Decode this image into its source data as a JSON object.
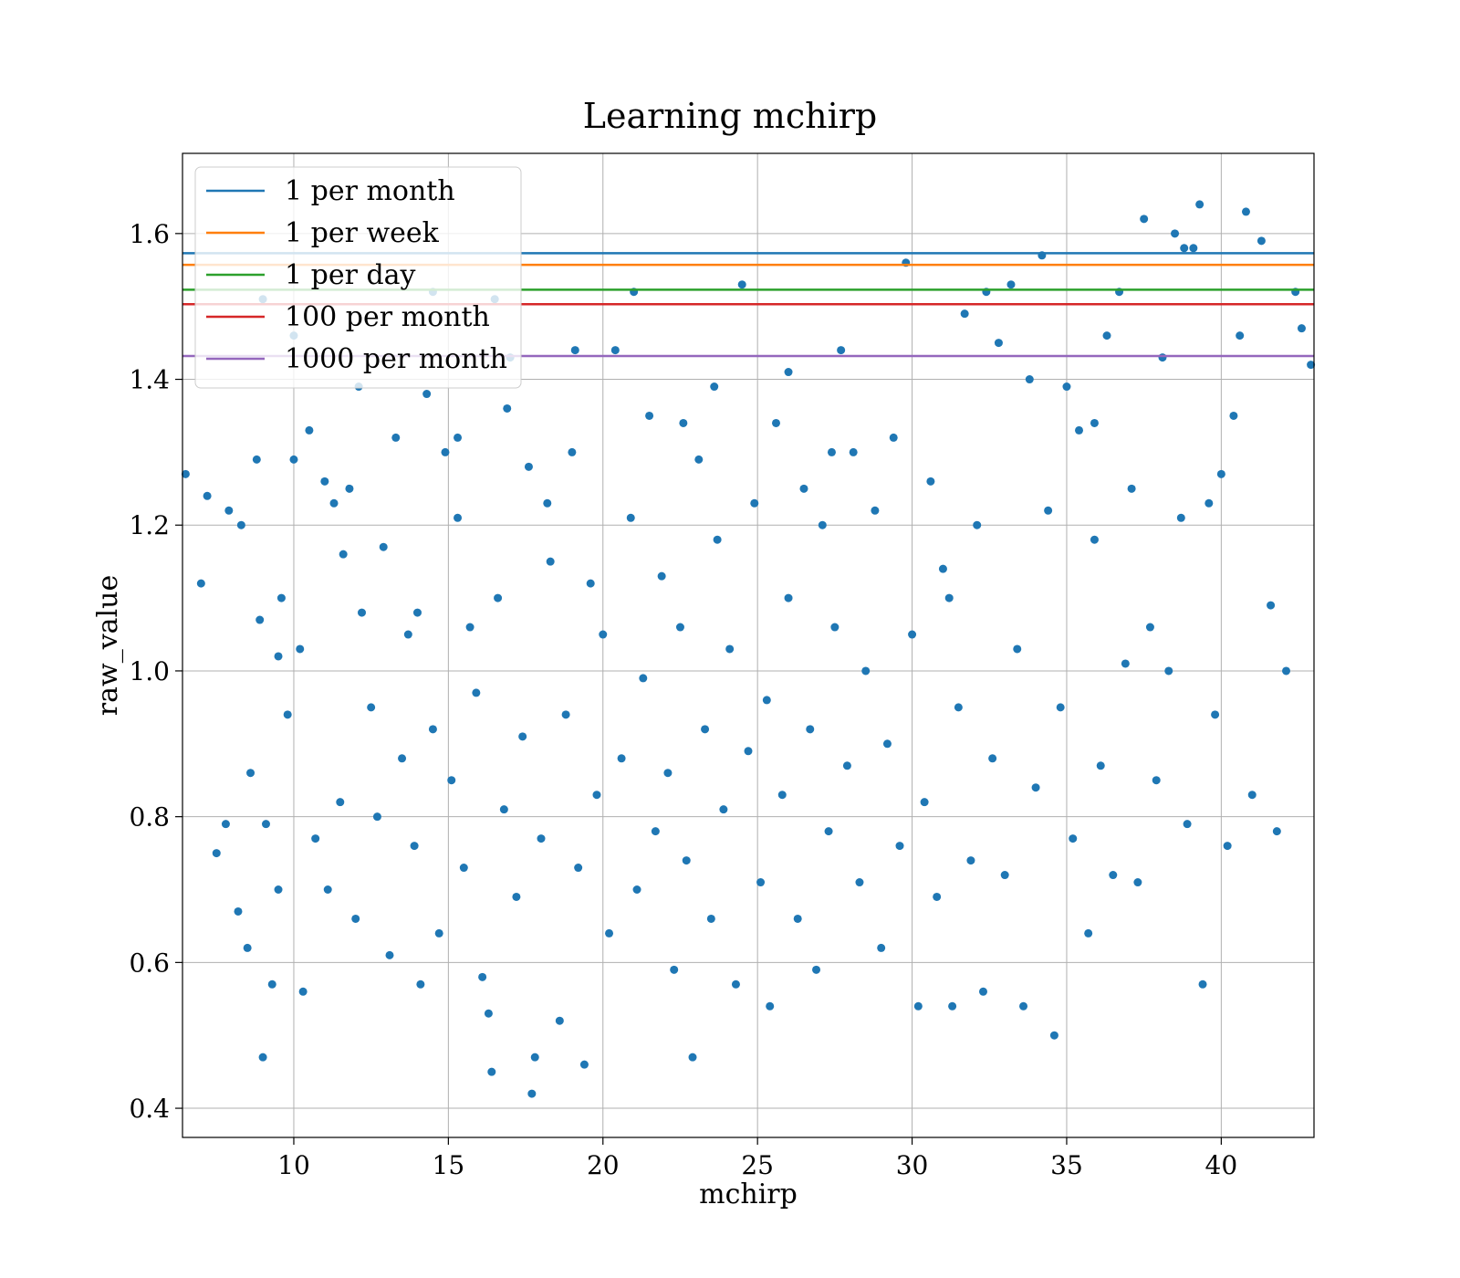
{
  "chart_data": {
    "type": "scatter",
    "title": "Learning mchirp",
    "xlabel": "mchirp",
    "ylabel": "raw_value",
    "xlim": [
      6.4,
      43.0
    ],
    "ylim": [
      0.36,
      1.71
    ],
    "xticks": [
      10,
      15,
      20,
      25,
      30,
      35,
      40
    ],
    "yticks": [
      0.4,
      0.6,
      0.8,
      1.0,
      1.2,
      1.4,
      1.6
    ],
    "xtick_labels": [
      "10",
      "15",
      "20",
      "25",
      "30",
      "35",
      "40"
    ],
    "ytick_labels": [
      "0.4",
      "0.6",
      "0.8",
      "1.0",
      "1.2",
      "1.4",
      "1.6"
    ],
    "grid": true,
    "legend_position": "upper-left",
    "marker_color": "#1f77b4",
    "hlines": [
      {
        "name": "1 per month",
        "y": 1.573,
        "color": "#1f77b4"
      },
      {
        "name": "1 per week",
        "y": 1.557,
        "color": "#ff7f0e"
      },
      {
        "name": "1 per day",
        "y": 1.523,
        "color": "#2ca02c"
      },
      {
        "name": "100 per month",
        "y": 1.503,
        "color": "#d62728"
      },
      {
        "name": "1000 per month",
        "y": 1.432,
        "color": "#9467bd"
      }
    ],
    "points": [
      [
        6.5,
        1.27
      ],
      [
        7.0,
        1.12
      ],
      [
        7.2,
        1.24
      ],
      [
        7.5,
        0.75
      ],
      [
        7.8,
        0.79
      ],
      [
        7.9,
        1.22
      ],
      [
        8.2,
        0.67
      ],
      [
        8.3,
        1.2
      ],
      [
        8.5,
        0.62
      ],
      [
        8.8,
        1.29
      ],
      [
        8.9,
        1.07
      ],
      [
        9.0,
        0.47
      ],
      [
        9.1,
        0.79
      ],
      [
        9.3,
        0.57
      ],
      [
        9.5,
        1.02
      ],
      [
        9.6,
        1.1
      ],
      [
        9.8,
        0.94
      ],
      [
        10.0,
        1.29
      ],
      [
        10.2,
        1.03
      ],
      [
        10.3,
        0.56
      ],
      [
        10.5,
        1.33
      ],
      [
        10.7,
        0.77
      ],
      [
        11.0,
        1.26
      ],
      [
        11.1,
        0.7
      ],
      [
        11.3,
        1.23
      ],
      [
        11.5,
        0.82
      ],
      [
        11.8,
        1.25
      ],
      [
        12.0,
        0.66
      ],
      [
        12.2,
        1.08
      ],
      [
        12.5,
        0.95
      ],
      [
        12.7,
        0.8
      ],
      [
        12.9,
        1.17
      ],
      [
        13.1,
        0.61
      ],
      [
        13.3,
        1.32
      ],
      [
        13.5,
        0.88
      ],
      [
        13.7,
        1.05
      ],
      [
        13.9,
        0.76
      ],
      [
        14.1,
        0.57
      ],
      [
        14.3,
        1.38
      ],
      [
        14.5,
        0.92
      ],
      [
        14.7,
        0.64
      ],
      [
        14.9,
        1.3
      ],
      [
        15.1,
        0.85
      ],
      [
        15.3,
        1.21
      ],
      [
        15.5,
        0.73
      ],
      [
        15.7,
        1.06
      ],
      [
        15.9,
        0.97
      ],
      [
        16.1,
        0.58
      ],
      [
        16.3,
        0.53
      ],
      [
        16.4,
        0.45
      ],
      [
        16.6,
        1.1
      ],
      [
        16.8,
        0.81
      ],
      [
        17.0,
        1.43
      ],
      [
        17.2,
        0.69
      ],
      [
        17.4,
        0.91
      ],
      [
        17.6,
        1.28
      ],
      [
        17.7,
        0.42
      ],
      [
        17.8,
        0.47
      ],
      [
        18.0,
        0.77
      ],
      [
        18.3,
        1.15
      ],
      [
        18.6,
        0.52
      ],
      [
        18.8,
        0.94
      ],
      [
        19.0,
        1.3
      ],
      [
        19.2,
        0.73
      ],
      [
        19.4,
        0.46
      ],
      [
        19.6,
        1.12
      ],
      [
        19.8,
        0.83
      ],
      [
        20.0,
        1.05
      ],
      [
        20.2,
        0.64
      ],
      [
        20.4,
        1.44
      ],
      [
        20.6,
        0.88
      ],
      [
        20.9,
        1.21
      ],
      [
        21.1,
        0.7
      ],
      [
        21.3,
        0.99
      ],
      [
        21.5,
        1.35
      ],
      [
        21.7,
        0.78
      ],
      [
        21.9,
        1.13
      ],
      [
        22.1,
        0.86
      ],
      [
        22.3,
        0.59
      ],
      [
        22.5,
        1.06
      ],
      [
        22.7,
        0.74
      ],
      [
        22.9,
        0.47
      ],
      [
        23.1,
        1.29
      ],
      [
        23.3,
        0.92
      ],
      [
        23.5,
        0.66
      ],
      [
        23.7,
        1.18
      ],
      [
        23.9,
        0.81
      ],
      [
        24.1,
        1.03
      ],
      [
        24.3,
        0.57
      ],
      [
        24.5,
        1.53
      ],
      [
        24.7,
        0.89
      ],
      [
        24.9,
        1.23
      ],
      [
        25.1,
        0.71
      ],
      [
        25.3,
        0.96
      ],
      [
        25.4,
        0.54
      ],
      [
        25.6,
        1.34
      ],
      [
        25.8,
        0.83
      ],
      [
        26.0,
        1.1
      ],
      [
        26.3,
        0.66
      ],
      [
        26.5,
        1.25
      ],
      [
        26.7,
        0.92
      ],
      [
        26.9,
        0.59
      ],
      [
        27.1,
        1.2
      ],
      [
        27.3,
        0.78
      ],
      [
        27.5,
        1.06
      ],
      [
        27.7,
        1.44
      ],
      [
        27.9,
        0.87
      ],
      [
        28.1,
        1.3
      ],
      [
        28.3,
        0.71
      ],
      [
        28.5,
        1.0
      ],
      [
        28.8,
        1.22
      ],
      [
        29.0,
        0.62
      ],
      [
        29.2,
        0.9
      ],
      [
        29.4,
        1.32
      ],
      [
        29.6,
        0.76
      ],
      [
        29.8,
        1.56
      ],
      [
        30.0,
        1.05
      ],
      [
        30.2,
        0.54
      ],
      [
        30.4,
        0.82
      ],
      [
        30.6,
        1.26
      ],
      [
        30.8,
        0.69
      ],
      [
        31.0,
        1.14
      ],
      [
        31.3,
        0.54
      ],
      [
        31.5,
        0.95
      ],
      [
        31.7,
        1.49
      ],
      [
        31.9,
        0.74
      ],
      [
        32.1,
        1.2
      ],
      [
        32.3,
        0.56
      ],
      [
        32.6,
        0.88
      ],
      [
        32.8,
        1.45
      ],
      [
        33.0,
        0.72
      ],
      [
        33.2,
        1.53
      ],
      [
        33.4,
        1.03
      ],
      [
        33.6,
        0.54
      ],
      [
        33.8,
        1.4
      ],
      [
        34.0,
        0.84
      ],
      [
        34.2,
        1.57
      ],
      [
        34.4,
        1.22
      ],
      [
        34.6,
        0.5
      ],
      [
        34.8,
        0.95
      ],
      [
        35.0,
        1.39
      ],
      [
        35.2,
        0.77
      ],
      [
        35.4,
        1.33
      ],
      [
        35.7,
        0.64
      ],
      [
        35.9,
        1.18
      ],
      [
        36.1,
        0.87
      ],
      [
        36.3,
        1.46
      ],
      [
        36.5,
        0.72
      ],
      [
        36.7,
        1.52
      ],
      [
        36.9,
        1.01
      ],
      [
        37.1,
        1.25
      ],
      [
        37.3,
        0.71
      ],
      [
        37.5,
        1.62
      ],
      [
        37.7,
        1.06
      ],
      [
        37.9,
        0.85
      ],
      [
        38.1,
        1.43
      ],
      [
        38.3,
        1.0
      ],
      [
        38.5,
        1.6
      ],
      [
        38.7,
        1.21
      ],
      [
        38.8,
        1.58
      ],
      [
        38.9,
        0.79
      ],
      [
        39.1,
        1.58
      ],
      [
        39.3,
        1.64
      ],
      [
        39.4,
        0.57
      ],
      [
        39.6,
        1.23
      ],
      [
        39.8,
        0.94
      ],
      [
        40.0,
        1.27
      ],
      [
        40.2,
        0.76
      ],
      [
        40.4,
        1.35
      ],
      [
        40.6,
        1.46
      ],
      [
        40.8,
        1.63
      ],
      [
        41.0,
        0.83
      ],
      [
        41.3,
        1.59
      ],
      [
        41.6,
        1.09
      ],
      [
        41.8,
        0.78
      ],
      [
        42.1,
        1.0
      ],
      [
        42.4,
        1.52
      ],
      [
        42.6,
        1.47
      ],
      [
        42.9,
        1.42
      ],
      [
        16.5,
        1.51
      ],
      [
        10.0,
        1.46
      ],
      [
        9.0,
        1.51
      ],
      [
        14.5,
        1.52
      ],
      [
        21.0,
        1.52
      ],
      [
        15.3,
        1.32
      ],
      [
        16.9,
        1.36
      ],
      [
        19.1,
        1.44
      ],
      [
        12.1,
        1.39
      ],
      [
        23.6,
        1.39
      ],
      [
        26.0,
        1.41
      ],
      [
        32.4,
        1.52
      ],
      [
        35.9,
        1.34
      ],
      [
        31.2,
        1.1
      ],
      [
        27.4,
        1.3
      ],
      [
        22.6,
        1.34
      ],
      [
        18.2,
        1.23
      ],
      [
        14.0,
        1.08
      ],
      [
        11.6,
        1.16
      ],
      [
        9.5,
        0.7
      ],
      [
        8.6,
        0.86
      ]
    ]
  }
}
